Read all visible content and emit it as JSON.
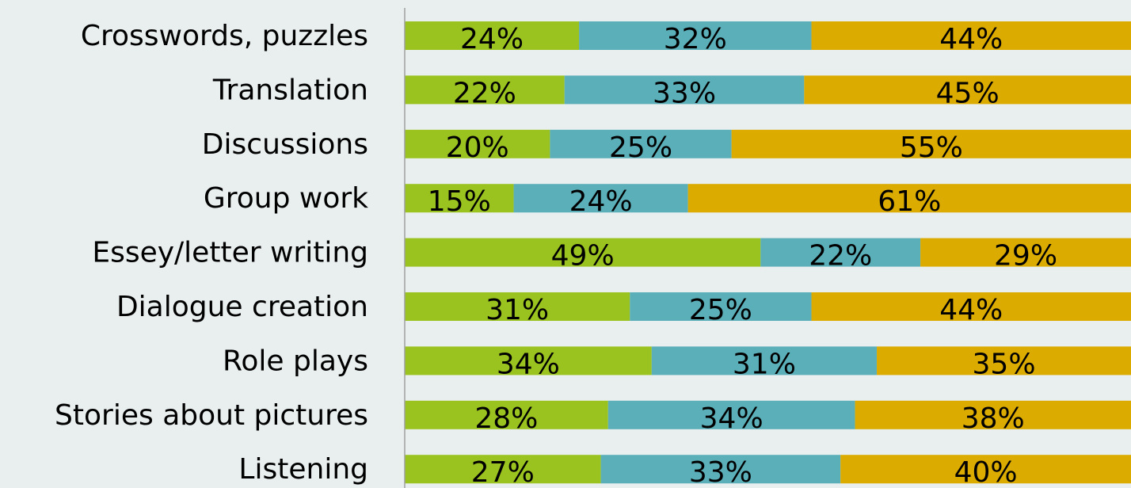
{
  "chart_data": {
    "type": "stacked-bar-horizontal",
    "categories": [
      "Crosswords, puzzles",
      "Translation",
      "Discussions",
      "Group work",
      "Essey/letter writing",
      "Dialogue creation",
      "Role plays",
      "Stories about pictures",
      "Listening"
    ],
    "xlim": [
      0,
      100
    ],
    "series": [
      {
        "color": "#9bc31f",
        "values": [
          24,
          22,
          20,
          15,
          49,
          31,
          34,
          28,
          27
        ],
        "value_labels": [
          "24%",
          "22%",
          "20%",
          "15%",
          "49%",
          "31%",
          "34%",
          "28%",
          "27%"
        ]
      },
      {
        "color": "#5bafb9",
        "values": [
          32,
          33,
          25,
          24,
          22,
          25,
          31,
          34,
          33
        ],
        "value_labels": [
          "32%",
          "33%",
          "25%",
          "24%",
          "22%",
          "25%",
          "31%",
          "34%",
          "33%"
        ]
      },
      {
        "color": "#dcab00",
        "values": [
          44,
          45,
          55,
          61,
          29,
          44,
          35,
          38,
          40
        ],
        "value_labels": [
          "44%",
          "45%",
          "55%",
          "61%",
          "29%",
          "44%",
          "35%",
          "38%",
          "40%"
        ]
      }
    ]
  }
}
